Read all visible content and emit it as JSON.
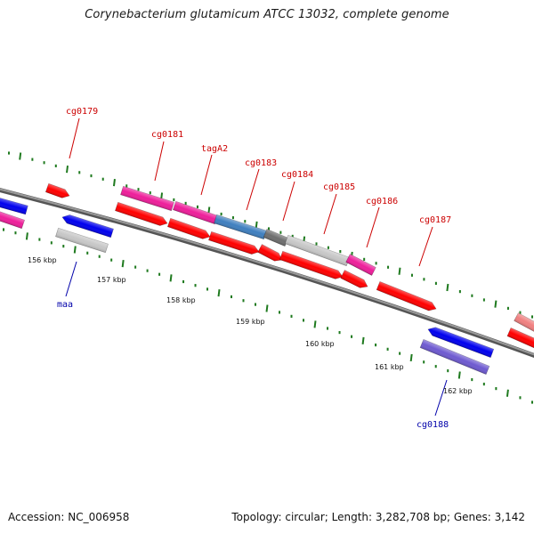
{
  "title": "Corynebacterium glutamicum ATCC 13032, complete genome",
  "footer": {
    "accession": "Accession: NC_006958",
    "topology": "Topology: circular; Length: 3,282,708 bp; Genes: 3,142"
  },
  "colors": {
    "backbone": "#777777",
    "tick": "#1f7a1f",
    "label_forward": "#cc0000",
    "label_reverse": "#0000aa",
    "feature_red": "#ff0000",
    "feature_magenta": "#ee1e9a",
    "feature_blue": "#0000ee",
    "feature_steel": "#3f7fbf",
    "feature_grey": "#c7c7c7",
    "feature_darkgrey": "#6e6e6e",
    "feature_purple": "#6e5ad0",
    "feature_pink": "#f08080"
  },
  "ticks": [
    "156 kbp",
    "157 kbp",
    "158 kbp",
    "159 kbp",
    "160 kbp",
    "161 kbp",
    "162 kbp"
  ],
  "gene_labels": {
    "cg0179": "cg0179",
    "cg0181": "cg0181",
    "tagA2": "tagA2",
    "cg0183": "cg0183",
    "cg0184": "cg0184",
    "cg0185": "cg0185",
    "cg0186": "cg0186",
    "cg0187": "cg0187",
    "maa": "maa",
    "cg0188": "cg0188"
  },
  "features": [
    {
      "name": "feature-left-blue",
      "color": "feature_blue"
    },
    {
      "name": "feature-left-magenta",
      "color": "feature_magenta"
    },
    {
      "name": "feature-small-red",
      "color": "feature_red"
    },
    {
      "name": "feature-maa-blue",
      "color": "feature_blue"
    },
    {
      "name": "feature-maa-grey",
      "color": "feature_grey"
    },
    {
      "name": "feature-cg0181-magenta",
      "color": "feature_magenta"
    },
    {
      "name": "feature-cg0181-red",
      "color": "feature_red"
    },
    {
      "name": "feature-taga2-magenta",
      "color": "feature_magenta"
    },
    {
      "name": "feature-taga2-red",
      "color": "feature_red"
    },
    {
      "name": "feature-cg0183-steel",
      "color": "feature_steel"
    },
    {
      "name": "feature-cg0183-red",
      "color": "feature_red"
    },
    {
      "name": "feature-cg0184-darkgrey",
      "color": "feature_darkgrey"
    },
    {
      "name": "feature-cg0184-red",
      "color": "feature_red"
    },
    {
      "name": "feature-cg0185-grey",
      "color": "feature_grey"
    },
    {
      "name": "feature-cg0185-red",
      "color": "feature_red"
    },
    {
      "name": "feature-cg0186-magenta",
      "color": "feature_magenta"
    },
    {
      "name": "feature-cg0186-red",
      "color": "feature_red"
    },
    {
      "name": "feature-cg0187-red",
      "color": "feature_red"
    },
    {
      "name": "feature-cg0188-blue",
      "color": "feature_blue"
    },
    {
      "name": "feature-cg0188-purple",
      "color": "feature_purple"
    },
    {
      "name": "feature-right-pink",
      "color": "feature_pink"
    },
    {
      "name": "feature-right-red",
      "color": "feature_red"
    }
  ]
}
